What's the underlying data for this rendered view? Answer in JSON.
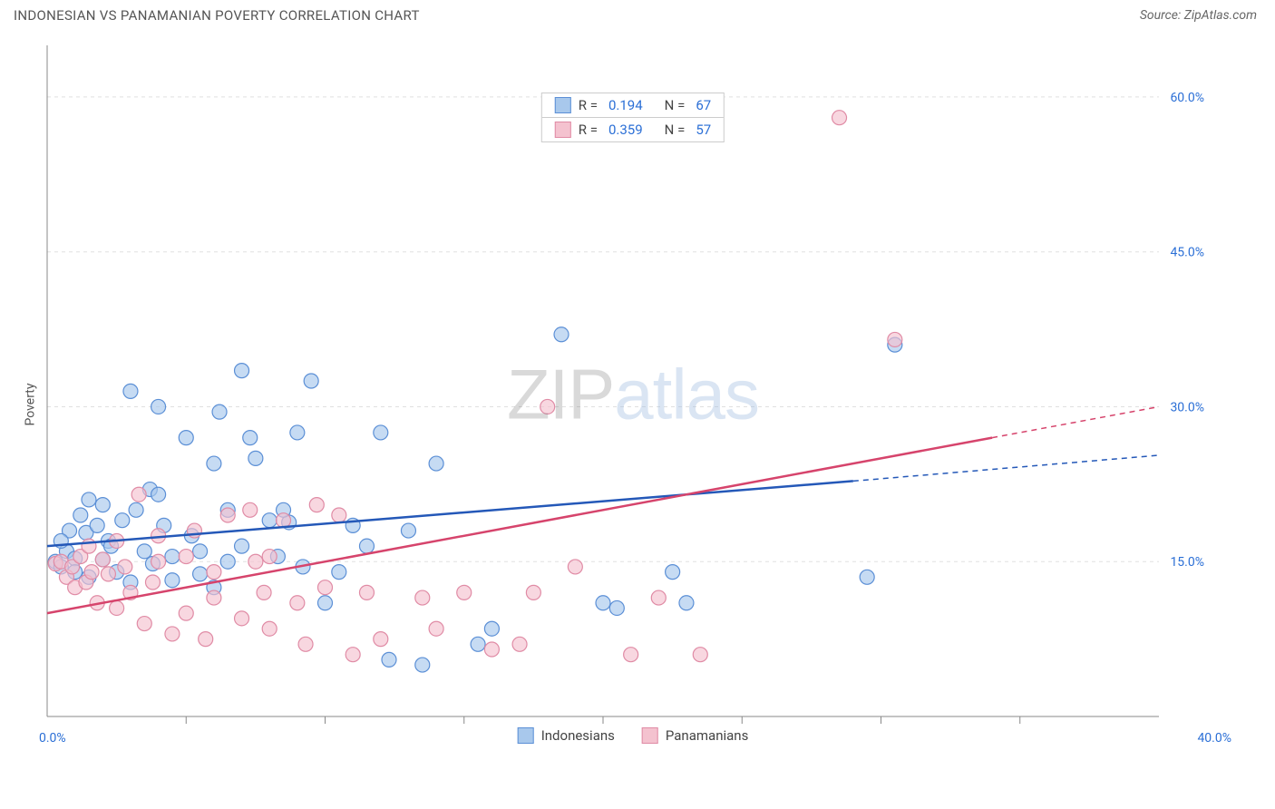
{
  "header": {
    "title": "INDONESIAN VS PANAMANIAN POVERTY CORRELATION CHART",
    "source": "Source: ZipAtlas.com"
  },
  "chart": {
    "type": "scatter",
    "ylabel": "Poverty",
    "xlim": [
      0,
      40
    ],
    "ylim": [
      0,
      65
    ],
    "x_origin_label": "0.0%",
    "x_max_label": "40.0%",
    "yticks": [
      15.0,
      30.0,
      45.0,
      60.0
    ],
    "ytick_labels": [
      "15.0%",
      "30.0%",
      "45.0%",
      "60.0%"
    ],
    "xticks": [
      5,
      10,
      15,
      20,
      25,
      30,
      35
    ],
    "grid_color": "#e0e0e0",
    "axis_color": "#888888",
    "background_color": "#ffffff",
    "label_color": "#2b6fd6",
    "watermark": {
      "zip": "ZIP",
      "atlas": "atlas"
    },
    "series": [
      {
        "name": "Indonesians",
        "color_fill": "#a8c8ec",
        "color_stroke": "#5b8fd6",
        "r_value": "0.194",
        "n_value": "67",
        "marker_radius": 8,
        "marker_opacity": 0.65,
        "trend": {
          "x1": 0,
          "y1": 16.5,
          "x2": 29,
          "y2": 22.8,
          "x2_ext": 40,
          "y2_ext": 25.3,
          "color": "#2458b8",
          "width": 2.5
        },
        "points": [
          [
            0.3,
            15.0
          ],
          [
            0.5,
            14.5
          ],
          [
            0.7,
            16.0
          ],
          [
            0.8,
            18.0
          ],
          [
            1.0,
            15.3
          ],
          [
            1.2,
            19.5
          ],
          [
            1.4,
            17.8
          ],
          [
            1.5,
            21.0
          ],
          [
            1.8,
            18.5
          ],
          [
            2.0,
            15.2
          ],
          [
            2.2,
            17.0
          ],
          [
            2.5,
            14.0
          ],
          [
            2.7,
            19.0
          ],
          [
            3.0,
            31.5
          ],
          [
            3.2,
            20.0
          ],
          [
            3.5,
            16.0
          ],
          [
            3.7,
            22.0
          ],
          [
            4.0,
            30.0
          ],
          [
            4.2,
            18.5
          ],
          [
            4.5,
            15.5
          ],
          [
            5.0,
            27.0
          ],
          [
            5.2,
            17.5
          ],
          [
            5.5,
            16.0
          ],
          [
            6.0,
            24.5
          ],
          [
            6.2,
            29.5
          ],
          [
            6.5,
            15.0
          ],
          [
            7.0,
            33.5
          ],
          [
            7.3,
            27.0
          ],
          [
            7.5,
            25.0
          ],
          [
            8.0,
            19.0
          ],
          [
            8.3,
            15.5
          ],
          [
            8.7,
            18.8
          ],
          [
            9.0,
            27.5
          ],
          [
            9.2,
            14.5
          ],
          [
            9.5,
            32.5
          ],
          [
            10.0,
            11.0
          ],
          [
            10.5,
            14.0
          ],
          [
            11.0,
            18.5
          ],
          [
            11.5,
            16.5
          ],
          [
            12.0,
            27.5
          ],
          [
            12.3,
            5.5
          ],
          [
            13.0,
            18.0
          ],
          [
            13.5,
            5.0
          ],
          [
            14.0,
            24.5
          ],
          [
            15.5,
            7.0
          ],
          [
            16.0,
            8.5
          ],
          [
            18.5,
            37.0
          ],
          [
            20.0,
            11.0
          ],
          [
            20.5,
            10.5
          ],
          [
            22.5,
            14.0
          ],
          [
            23.0,
            11.0
          ],
          [
            29.5,
            13.5
          ],
          [
            30.5,
            36.0
          ],
          [
            3.0,
            13.0
          ],
          [
            4.5,
            13.2
          ],
          [
            6.0,
            12.5
          ],
          [
            1.0,
            14.0
          ],
          [
            2.3,
            16.5
          ],
          [
            3.8,
            14.8
          ],
          [
            5.5,
            13.8
          ],
          [
            7.0,
            16.5
          ],
          [
            8.5,
            20.0
          ],
          [
            2.0,
            20.5
          ],
          [
            1.5,
            13.5
          ],
          [
            4.0,
            21.5
          ],
          [
            6.5,
            20.0
          ],
          [
            0.5,
            17.0
          ]
        ]
      },
      {
        "name": "Panamanians",
        "color_fill": "#f4c2cf",
        "color_stroke": "#e08ba5",
        "r_value": "0.359",
        "n_value": "57",
        "marker_radius": 8,
        "marker_opacity": 0.65,
        "trend": {
          "x1": 0,
          "y1": 10.0,
          "x2": 34,
          "y2": 27.0,
          "x2_ext": 40,
          "y2_ext": 30.0,
          "color": "#d6446c",
          "width": 2.5
        },
        "points": [
          [
            0.3,
            14.8
          ],
          [
            0.5,
            15.0
          ],
          [
            0.7,
            13.5
          ],
          [
            0.9,
            14.5
          ],
          [
            1.0,
            12.5
          ],
          [
            1.2,
            15.5
          ],
          [
            1.4,
            13.0
          ],
          [
            1.6,
            14.0
          ],
          [
            1.8,
            11.0
          ],
          [
            2.0,
            15.2
          ],
          [
            2.2,
            13.8
          ],
          [
            2.5,
            10.5
          ],
          [
            2.8,
            14.5
          ],
          [
            3.0,
            12.0
          ],
          [
            3.3,
            21.5
          ],
          [
            3.5,
            9.0
          ],
          [
            3.8,
            13.0
          ],
          [
            4.0,
            17.5
          ],
          [
            4.5,
            8.0
          ],
          [
            5.0,
            10.0
          ],
          [
            5.3,
            18.0
          ],
          [
            5.7,
            7.5
          ],
          [
            6.0,
            11.5
          ],
          [
            6.5,
            19.5
          ],
          [
            7.0,
            9.5
          ],
          [
            7.3,
            20.0
          ],
          [
            7.8,
            12.0
          ],
          [
            8.0,
            8.5
          ],
          [
            8.5,
            19.0
          ],
          [
            9.0,
            11.0
          ],
          [
            9.3,
            7.0
          ],
          [
            9.7,
            20.5
          ],
          [
            10.0,
            12.5
          ],
          [
            10.5,
            19.5
          ],
          [
            11.0,
            6.0
          ],
          [
            11.5,
            12.0
          ],
          [
            12.0,
            7.5
          ],
          [
            13.5,
            11.5
          ],
          [
            14.0,
            8.5
          ],
          [
            15.0,
            12.0
          ],
          [
            16.0,
            6.5
          ],
          [
            17.0,
            7.0
          ],
          [
            17.5,
            12.0
          ],
          [
            18.0,
            30.0
          ],
          [
            19.0,
            14.5
          ],
          [
            21.0,
            6.0
          ],
          [
            22.0,
            11.5
          ],
          [
            23.5,
            6.0
          ],
          [
            28.5,
            58.0
          ],
          [
            30.5,
            36.5
          ],
          [
            1.5,
            16.5
          ],
          [
            2.5,
            17.0
          ],
          [
            4.0,
            15.0
          ],
          [
            5.0,
            15.5
          ],
          [
            6.0,
            14.0
          ],
          [
            7.5,
            15.0
          ],
          [
            8.0,
            15.5
          ]
        ]
      }
    ],
    "bottom_legend": [
      {
        "swatch_fill": "#a8c8ec",
        "swatch_stroke": "#5b8fd6",
        "label": "Indonesians"
      },
      {
        "swatch_fill": "#f4c2cf",
        "swatch_stroke": "#e08ba5",
        "label": "Panamanians"
      }
    ]
  }
}
